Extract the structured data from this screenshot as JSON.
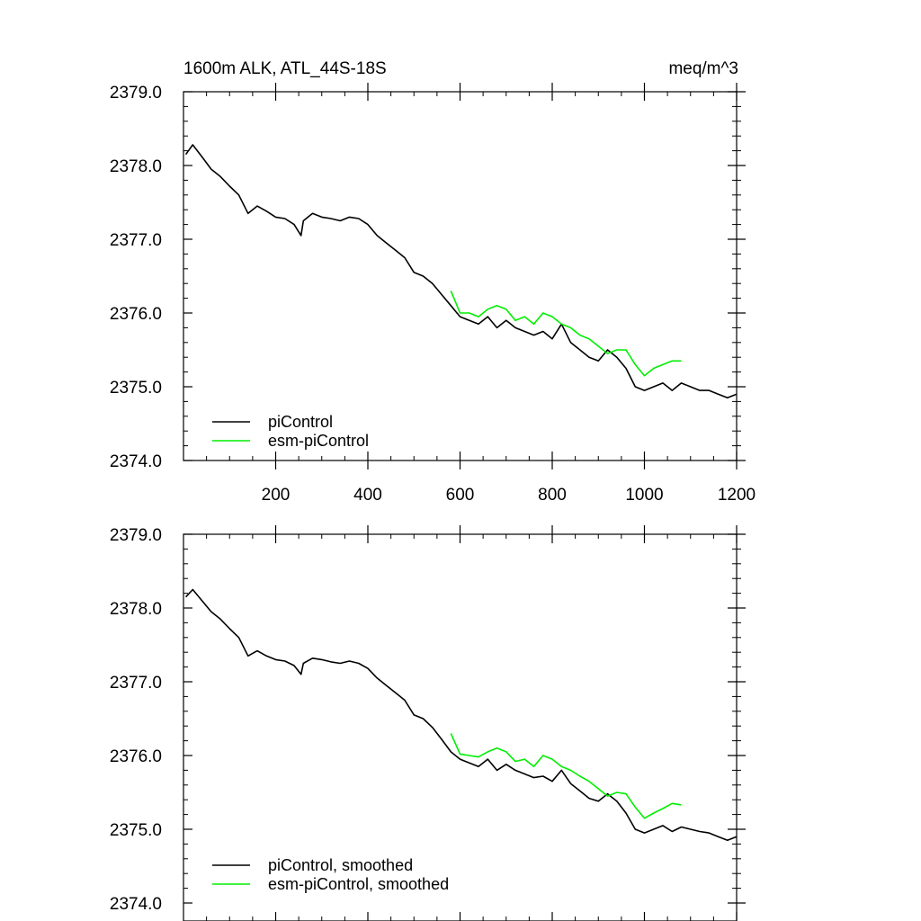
{
  "header": {
    "title": "1600m ALK, ATL_44S-18S",
    "units": "meq/m^3"
  },
  "colors": {
    "piControl": "#000000",
    "esm_piControl": "#00ee00",
    "axis": "#000000"
  },
  "chart_data": [
    {
      "type": "line",
      "panel": "top",
      "title": "1600m ALK, ATL_44S-18S",
      "units_label": "meq/m^3",
      "xlim": [
        0,
        1200
      ],
      "ylim": [
        2374.0,
        2379.0
      ],
      "xticks": [
        200,
        400,
        600,
        800,
        1000,
        1200
      ],
      "xtick_labels": [
        "200",
        "400",
        "600",
        "800",
        "1000",
        "1200"
      ],
      "yticks": [
        2374.0,
        2375.0,
        2376.0,
        2377.0,
        2378.0,
        2379.0
      ],
      "ytick_labels": [
        "2374.0",
        "2375.0",
        "2376.0",
        "2377.0",
        "2378.0",
        "2379.0"
      ],
      "legend_location": "bottom-left",
      "series": [
        {
          "name": "piControl",
          "x": [
            5,
            20,
            40,
            60,
            80,
            100,
            120,
            140,
            160,
            180,
            200,
            220,
            240,
            255,
            260,
            280,
            300,
            320,
            340,
            360,
            380,
            400,
            420,
            440,
            460,
            480,
            500,
            520,
            540,
            560,
            580,
            600,
            620,
            640,
            660,
            680,
            700,
            720,
            740,
            760,
            780,
            800,
            820,
            840,
            860,
            880,
            900,
            920,
            940,
            960,
            980,
            1000,
            1020,
            1040,
            1060,
            1080,
            1100,
            1120,
            1140,
            1160,
            1180,
            1200
          ],
          "y": [
            2378.15,
            2378.28,
            2378.12,
            2377.95,
            2377.85,
            2377.72,
            2377.6,
            2377.35,
            2377.45,
            2377.38,
            2377.3,
            2377.28,
            2377.2,
            2377.05,
            2377.25,
            2377.35,
            2377.3,
            2377.28,
            2377.25,
            2377.3,
            2377.28,
            2377.2,
            2377.05,
            2376.95,
            2376.85,
            2376.75,
            2376.55,
            2376.5,
            2376.4,
            2376.25,
            2376.1,
            2375.95,
            2375.9,
            2375.85,
            2375.95,
            2375.8,
            2375.9,
            2375.8,
            2375.75,
            2375.7,
            2375.75,
            2375.65,
            2375.85,
            2375.6,
            2375.5,
            2375.4,
            2375.35,
            2375.5,
            2375.4,
            2375.25,
            2375.0,
            2374.95,
            2375.0,
            2375.05,
            2374.95,
            2375.05,
            2375.0,
            2374.95,
            2374.95,
            2374.9,
            2374.85,
            2374.9
          ]
        },
        {
          "name": "esm-piControl",
          "x": [
            580,
            600,
            620,
            640,
            660,
            680,
            700,
            720,
            740,
            760,
            780,
            800,
            820,
            840,
            860,
            880,
            900,
            920,
            940,
            960,
            980,
            1000,
            1020,
            1040,
            1060,
            1080
          ],
          "y": [
            2376.3,
            2376.0,
            2376.0,
            2375.95,
            2376.05,
            2376.1,
            2376.05,
            2375.9,
            2375.95,
            2375.85,
            2376.0,
            2375.95,
            2375.85,
            2375.8,
            2375.7,
            2375.65,
            2375.55,
            2375.45,
            2375.5,
            2375.5,
            2375.3,
            2375.15,
            2375.25,
            2375.3,
            2375.35,
            2375.35
          ]
        }
      ]
    },
    {
      "type": "line",
      "panel": "bottom",
      "xlim": [
        0,
        1200
      ],
      "ylim": [
        2374.0,
        2379.0
      ],
      "xticks": [
        200,
        400,
        600,
        800,
        1000,
        1200
      ],
      "yticks": [
        2374.0,
        2375.0,
        2376.0,
        2377.0,
        2378.0,
        2379.0
      ],
      "ytick_labels": [
        "2374.0",
        "2375.0",
        "2376.0",
        "2377.0",
        "2378.0",
        "2379.0"
      ],
      "legend_location": "bottom-left",
      "series": [
        {
          "name": "piControl, smoothed",
          "x": [
            5,
            20,
            40,
            60,
            80,
            100,
            120,
            140,
            160,
            180,
            200,
            220,
            240,
            255,
            260,
            280,
            300,
            320,
            340,
            360,
            380,
            400,
            420,
            440,
            460,
            480,
            500,
            520,
            540,
            560,
            580,
            600,
            620,
            640,
            660,
            680,
            700,
            720,
            740,
            760,
            780,
            800,
            820,
            840,
            860,
            880,
            900,
            920,
            940,
            960,
            980,
            1000,
            1020,
            1040,
            1060,
            1080,
            1100,
            1120,
            1140,
            1160,
            1180,
            1200
          ],
          "y": [
            2378.15,
            2378.25,
            2378.1,
            2377.95,
            2377.85,
            2377.72,
            2377.6,
            2377.35,
            2377.42,
            2377.35,
            2377.3,
            2377.28,
            2377.22,
            2377.1,
            2377.25,
            2377.32,
            2377.3,
            2377.27,
            2377.25,
            2377.28,
            2377.25,
            2377.18,
            2377.05,
            2376.95,
            2376.85,
            2376.75,
            2376.55,
            2376.5,
            2376.38,
            2376.22,
            2376.05,
            2375.95,
            2375.9,
            2375.85,
            2375.95,
            2375.8,
            2375.88,
            2375.8,
            2375.75,
            2375.7,
            2375.72,
            2375.65,
            2375.8,
            2375.62,
            2375.52,
            2375.42,
            2375.38,
            2375.48,
            2375.38,
            2375.22,
            2375.0,
            2374.95,
            2375.0,
            2375.05,
            2374.97,
            2375.03,
            2375.0,
            2374.97,
            2374.95,
            2374.9,
            2374.85,
            2374.9
          ]
        },
        {
          "name": "esm-piControl, smoothed",
          "x": [
            580,
            600,
            620,
            640,
            660,
            680,
            700,
            720,
            740,
            760,
            780,
            800,
            820,
            840,
            860,
            880,
            900,
            920,
            940,
            960,
            980,
            1000,
            1020,
            1040,
            1060,
            1080
          ],
          "y": [
            2376.3,
            2376.02,
            2376.0,
            2375.98,
            2376.05,
            2376.1,
            2376.05,
            2375.92,
            2375.95,
            2375.85,
            2376.0,
            2375.95,
            2375.85,
            2375.8,
            2375.72,
            2375.65,
            2375.55,
            2375.45,
            2375.5,
            2375.48,
            2375.3,
            2375.15,
            2375.22,
            2375.28,
            2375.35,
            2375.33
          ]
        }
      ]
    }
  ]
}
